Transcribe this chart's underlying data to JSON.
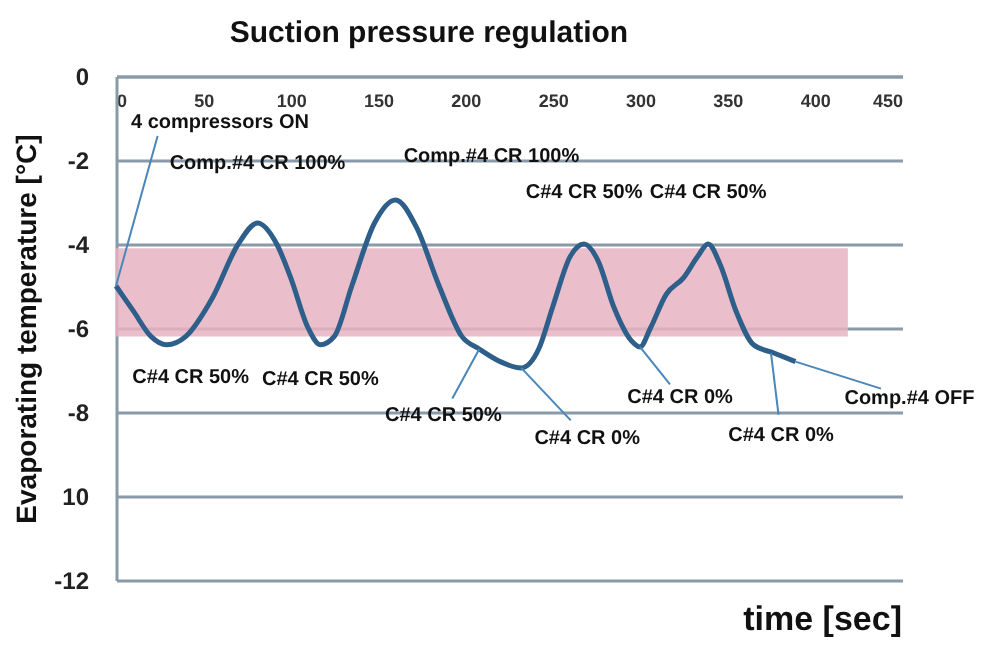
{
  "chart_data": {
    "type": "line",
    "title": "Suction pressure regulation",
    "xlabel": "time [sec]",
    "ylabel": "Evaporating temperature [°C]",
    "x": [
      0,
      10,
      20,
      29,
      40,
      55,
      70,
      81,
      92,
      100,
      110,
      117,
      125,
      135,
      148,
      160,
      172,
      185,
      198,
      208,
      220,
      232,
      242,
      250,
      260,
      268,
      276,
      285,
      295,
      300,
      306,
      315,
      325,
      333,
      339,
      346,
      355,
      365,
      377,
      389
    ],
    "series": [
      {
        "color": "#2e5f8a",
        "values": [
          -5.0,
          -5.6,
          -6.2,
          -6.4,
          -6.2,
          -5.3,
          -4.0,
          -3.5,
          -4.0,
          -4.8,
          -6.0,
          -6.4,
          -6.2,
          -5.0,
          -3.5,
          -2.95,
          -3.6,
          -5.0,
          -6.2,
          -6.5,
          -6.8,
          -6.95,
          -6.5,
          -5.5,
          -4.3,
          -4.0,
          -4.4,
          -5.5,
          -6.3,
          -6.45,
          -6.0,
          -5.2,
          -4.8,
          -4.3,
          -4.0,
          -4.5,
          -5.6,
          -6.4,
          -6.6,
          -6.8
        ]
      }
    ],
    "xlim": [
      0,
      450
    ],
    "xticks": [
      0,
      50,
      100,
      150,
      200,
      250,
      300,
      350,
      400,
      450
    ],
    "ylim": [
      -12,
      0
    ],
    "yticks": [
      0,
      -2,
      -4,
      -6,
      -8,
      {
        "value": -10,
        "label": "10"
      },
      -12
    ],
    "grid": "y",
    "marker": "none",
    "line_style": "solid",
    "bands": [
      {
        "axis": "y",
        "from": -6.2,
        "to": -4.1,
        "color": "#e6b3c1"
      }
    ],
    "annotations": [
      {
        "text": "4 compressors ON",
        "x": 0,
        "y": -5.0
      },
      {
        "text": "Comp.#4 CR 100%",
        "x": 81,
        "y": -3.5
      },
      {
        "text": "Comp.#4 CR 100%",
        "x": 160,
        "y": -2.95
      },
      {
        "text": "C#4 CR 50%",
        "x": 268,
        "y": -4.0
      },
      {
        "text": "C#4 CR 50%",
        "x": 339,
        "y": -4.0
      },
      {
        "text": "C#4 CR 50%",
        "x": 29,
        "y": -6.4
      },
      {
        "text": "C#4 CR 50%",
        "x": 117,
        "y": -6.4
      },
      {
        "text": "C#4 CR 50%",
        "x": 208,
        "y": -6.5
      },
      {
        "text": "C#4 CR 0%",
        "x": 232,
        "y": -6.95
      },
      {
        "text": "C#4 CR 0%",
        "x": 300,
        "y": -6.45
      },
      {
        "text": "C#4 CR 0%",
        "x": 375,
        "y": -6.6
      },
      {
        "text": "Comp.#4 OFF",
        "x": 389,
        "y": -6.8
      }
    ]
  }
}
